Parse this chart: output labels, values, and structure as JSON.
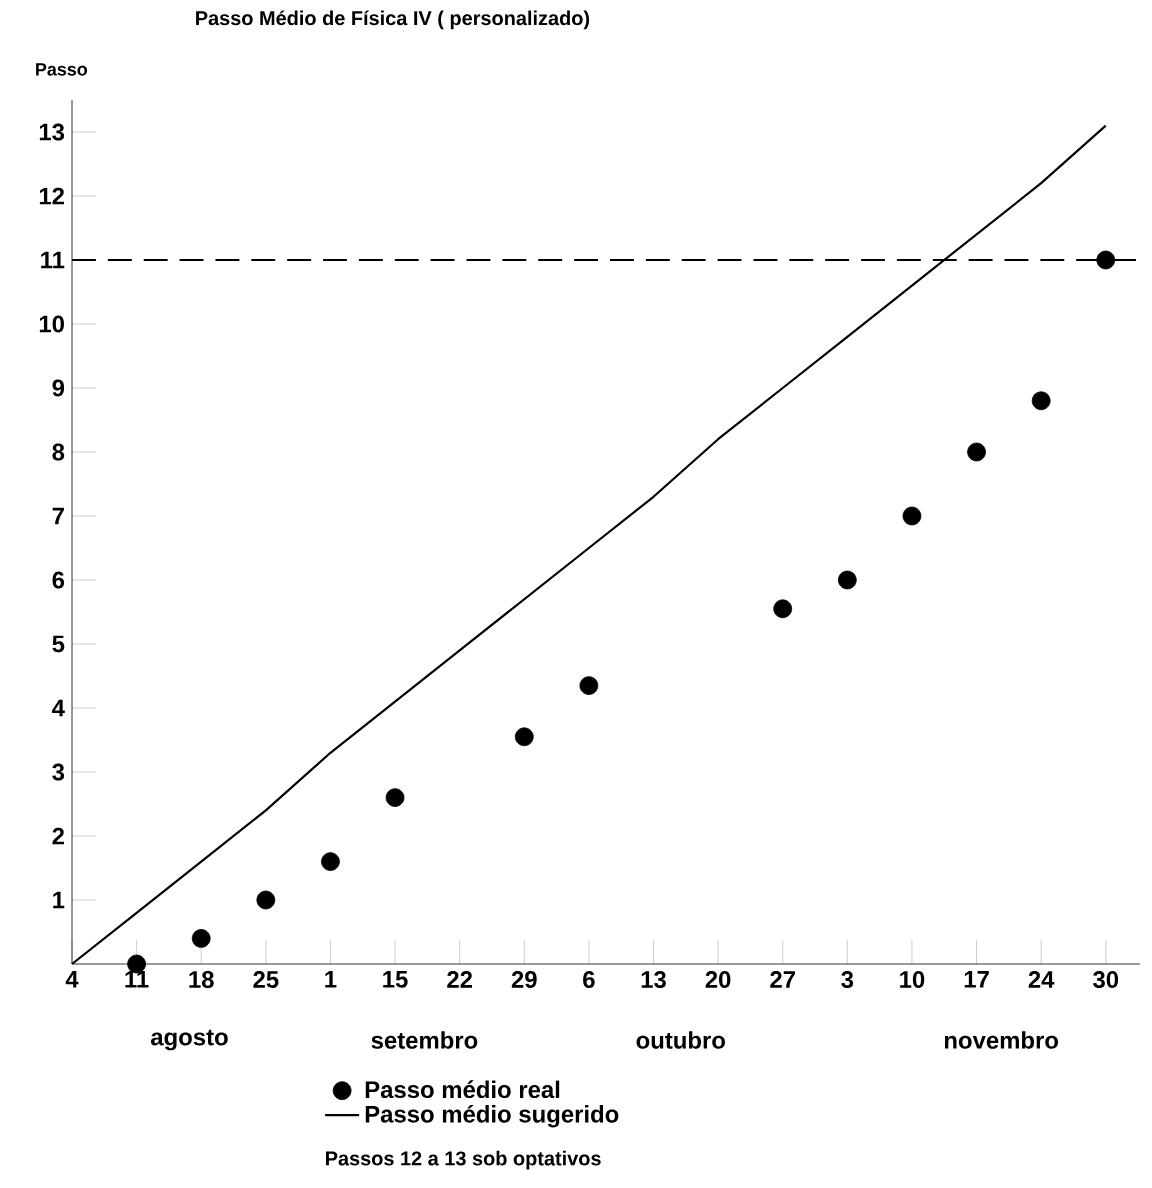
{
  "chart_data": {
    "type": "scatter",
    "title": "Passo Médio de Física IV ( personalizado)",
    "ylabel": "Passo",
    "categories": [
      "4",
      "11",
      "18",
      "25",
      "1",
      "15",
      "22",
      "29",
      "6",
      "13",
      "20",
      "27",
      "3",
      "10",
      "17",
      "24",
      "30"
    ],
    "ylim": [
      0,
      13.5
    ],
    "yticks": [
      1,
      2,
      3,
      4,
      5,
      6,
      7,
      8,
      9,
      10,
      11,
      12,
      13
    ],
    "series": [
      {
        "name": "Passo médio real",
        "marker": "circle",
        "color": "#000000",
        "values": [
          null,
          0,
          0.4,
          1,
          1.6,
          2.6,
          null,
          3.55,
          4.35,
          null,
          null,
          5.55,
          6,
          7,
          8,
          8.8,
          11
        ]
      },
      {
        "name": "Passo médio sugerido",
        "type": "line",
        "marker": "none",
        "color": "#000000",
        "values": [
          0,
          0.8,
          1.6,
          2.4,
          3.3,
          4.1,
          4.9,
          5.7,
          6.5,
          7.3,
          8.2,
          9.0,
          9.8,
          10.6,
          11.4,
          12.2,
          13.1
        ]
      }
    ],
    "ref_lines": [
      {
        "axis": "y",
        "value": 11,
        "line_style": "dashed",
        "color": "#000000"
      }
    ],
    "legend": "bottom",
    "annotations": [
      "agosto",
      "setembro",
      "outubro",
      "novembro",
      "Passos 12 a 13 sob optativos"
    ]
  }
}
